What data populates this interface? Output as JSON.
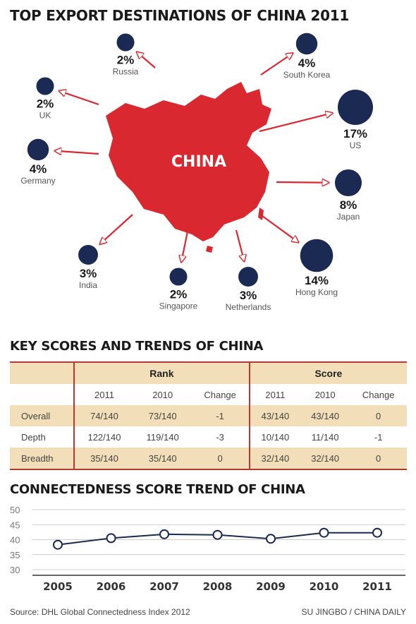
{
  "headings": {
    "destinations": "TOP EXPORT DESTINATIONS OF CHINA 2011",
    "scores": "KEY SCORES AND TRENDS OF CHINA",
    "trend": "CONNECTEDNESS SCORE TREND OF CHINA"
  },
  "map": {
    "center_label": "CHINA",
    "map_color": "#d9282f",
    "bubble_color": "#1b2a52"
  },
  "chart_data": [
    {
      "type": "bubble",
      "title": "TOP EXPORT DESTINATIONS OF CHINA 2011",
      "unit": "%",
      "categories": [
        "Russia",
        "UK",
        "Germany",
        "India",
        "Singapore",
        "Netherlands",
        "Hong Kong",
        "Japan",
        "US",
        "South Korea"
      ],
      "values": [
        2,
        2,
        4,
        3,
        2,
        3,
        14,
        8,
        17,
        4
      ],
      "labels": [
        "2%",
        "2%",
        "4%",
        "3%",
        "2%",
        "3%",
        "14%",
        "8%",
        "17%",
        "4%"
      ]
    },
    {
      "type": "table",
      "title": "KEY SCORES AND TRENDS OF CHINA",
      "groups": [
        "Rank",
        "Score"
      ],
      "columns": [
        "2011",
        "2010",
        "Change",
        "2011",
        "2010",
        "Change"
      ],
      "rows": [
        {
          "label": "Overall",
          "cells": [
            "74/140",
            "73/140",
            "-1",
            "43/140",
            "43/140",
            "0"
          ]
        },
        {
          "label": "Depth",
          "cells": [
            "122/140",
            "119/140",
            "-3",
            "10/140",
            "11/140",
            "-1"
          ]
        },
        {
          "label": "Breadth",
          "cells": [
            "35/140",
            "35/140",
            "0",
            "32/140",
            "32/140",
            "0"
          ]
        }
      ]
    },
    {
      "type": "line",
      "title": "CONNECTEDNESS SCORE TREND OF CHINA",
      "x": [
        "2005",
        "2006",
        "2007",
        "2008",
        "2009",
        "2010",
        "2011"
      ],
      "series": [
        {
          "values": [
            38.3,
            40.5,
            41.8,
            41.6,
            40.3,
            42.3,
            42.3
          ]
        }
      ],
      "yticks": [
        "50",
        "45",
        "40",
        "35",
        "30"
      ],
      "ylim": [
        30,
        50
      ],
      "grid": true,
      "line_color": "#1b2a52"
    }
  ],
  "footer": {
    "source": "Source: DHL Global Connectedness Index 2012",
    "credit": "SU JINGBO / CHINA DAILY"
  }
}
